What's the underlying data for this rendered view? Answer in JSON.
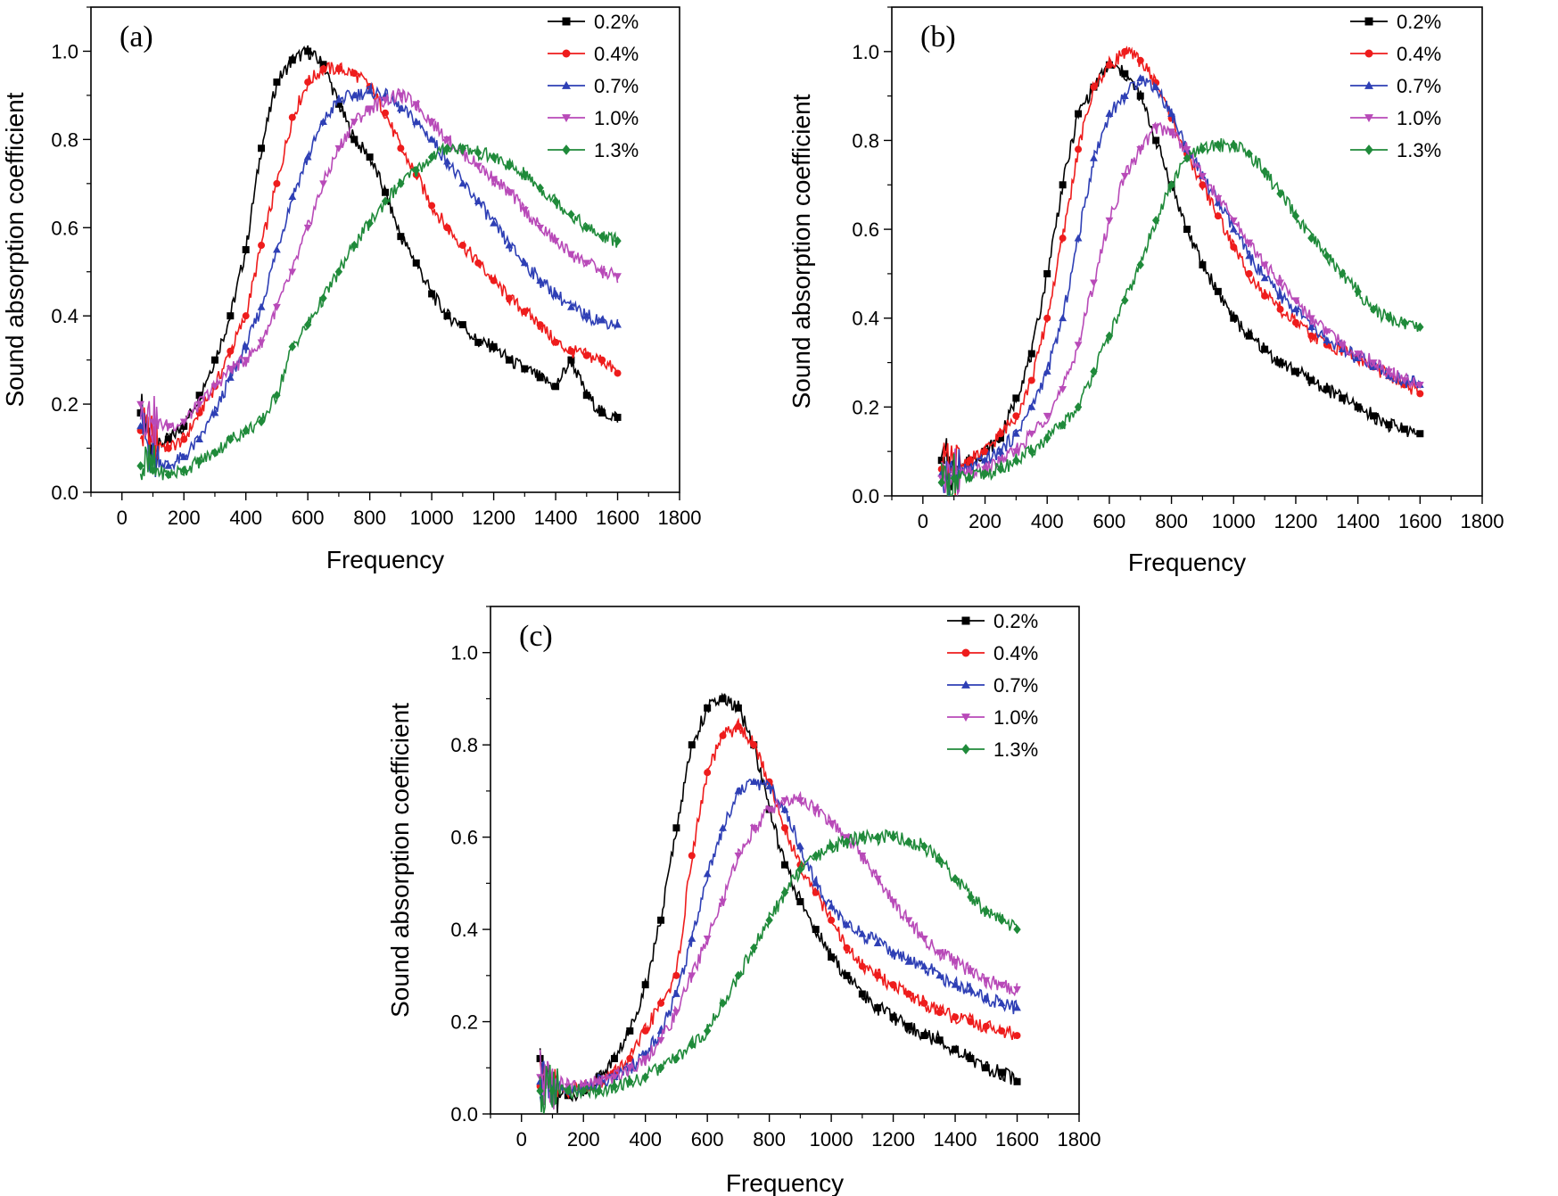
{
  "colors": {
    "0.2%": "#000000",
    "0.4%": "#ee1c1c",
    "0.7%": "#2e3fb5",
    "1.0%": "#b84ab8",
    "1.3%": "#1f8a3a"
  },
  "chart_data": [
    {
      "type": "line",
      "panel_label": "(a)",
      "xlabel": "Frequency",
      "ylabel": "Sound absorption coefficient",
      "xlim": [
        -100,
        1800
      ],
      "ylim": [
        0.0,
        1.1
      ],
      "xticks": [
        0,
        200,
        400,
        600,
        800,
        1000,
        1200,
        1400,
        1600,
        1800
      ],
      "yticks": [
        0.0,
        0.2,
        0.4,
        0.6,
        0.8,
        1.0
      ],
      "x": [
        60,
        100,
        150,
        200,
        250,
        300,
        350,
        400,
        450,
        500,
        550,
        600,
        650,
        700,
        750,
        800,
        850,
        900,
        950,
        1000,
        1050,
        1100,
        1150,
        1200,
        1250,
        1300,
        1350,
        1400,
        1450,
        1500,
        1550,
        1600
      ],
      "series": [
        {
          "name": "0.2%",
          "marker": "square",
          "values": [
            0.18,
            0.1,
            0.12,
            0.15,
            0.22,
            0.3,
            0.4,
            0.55,
            0.78,
            0.93,
            0.98,
            1.0,
            0.97,
            0.88,
            0.8,
            0.76,
            0.68,
            0.58,
            0.52,
            0.45,
            0.4,
            0.38,
            0.34,
            0.33,
            0.3,
            0.28,
            0.26,
            0.24,
            0.3,
            0.22,
            0.18,
            0.17
          ]
        },
        {
          "name": "0.4%",
          "marker": "circle",
          "values": [
            0.14,
            0.12,
            0.1,
            0.12,
            0.18,
            0.24,
            0.32,
            0.4,
            0.56,
            0.7,
            0.85,
            0.93,
            0.96,
            0.96,
            0.95,
            0.92,
            0.86,
            0.78,
            0.72,
            0.65,
            0.6,
            0.56,
            0.52,
            0.48,
            0.44,
            0.41,
            0.38,
            0.34,
            0.32,
            0.31,
            0.3,
            0.27
          ]
        },
        {
          "name": "0.7%",
          "marker": "triangle-up",
          "values": [
            0.15,
            0.08,
            0.06,
            0.08,
            0.12,
            0.18,
            0.26,
            0.33,
            0.42,
            0.55,
            0.67,
            0.76,
            0.84,
            0.89,
            0.9,
            0.91,
            0.9,
            0.87,
            0.84,
            0.8,
            0.75,
            0.7,
            0.66,
            0.61,
            0.56,
            0.52,
            0.48,
            0.45,
            0.42,
            0.4,
            0.39,
            0.38
          ]
        },
        {
          "name": "1.0%",
          "marker": "triangle-down",
          "values": [
            0.2,
            0.16,
            0.15,
            0.16,
            0.2,
            0.24,
            0.28,
            0.3,
            0.34,
            0.42,
            0.5,
            0.6,
            0.7,
            0.78,
            0.84,
            0.87,
            0.89,
            0.9,
            0.88,
            0.84,
            0.8,
            0.77,
            0.74,
            0.71,
            0.68,
            0.64,
            0.6,
            0.57,
            0.54,
            0.52,
            0.5,
            0.49
          ]
        },
        {
          "name": "1.3%",
          "marker": "diamond",
          "values": [
            0.06,
            0.05,
            0.04,
            0.05,
            0.07,
            0.09,
            0.12,
            0.14,
            0.16,
            0.22,
            0.33,
            0.38,
            0.44,
            0.5,
            0.56,
            0.61,
            0.66,
            0.7,
            0.73,
            0.76,
            0.78,
            0.78,
            0.77,
            0.76,
            0.74,
            0.72,
            0.69,
            0.66,
            0.63,
            0.6,
            0.58,
            0.57
          ]
        }
      ]
    },
    {
      "type": "line",
      "panel_label": "(b)",
      "xlabel": "Frequency",
      "ylabel": "Sound absorption coefficient",
      "xlim": [
        -100,
        1800
      ],
      "ylim": [
        0.0,
        1.1
      ],
      "xticks": [
        0,
        200,
        400,
        600,
        800,
        1000,
        1200,
        1400,
        1600,
        1800
      ],
      "yticks": [
        0.0,
        0.2,
        0.4,
        0.6,
        0.8,
        1.0
      ],
      "x": [
        60,
        100,
        150,
        200,
        250,
        300,
        350,
        400,
        450,
        500,
        550,
        600,
        650,
        700,
        750,
        800,
        850,
        900,
        950,
        1000,
        1050,
        1100,
        1150,
        1200,
        1250,
        1300,
        1350,
        1400,
        1450,
        1500,
        1550,
        1600
      ],
      "series": [
        {
          "name": "0.2%",
          "marker": "square",
          "values": [
            0.08,
            0.06,
            0.08,
            0.1,
            0.13,
            0.22,
            0.32,
            0.5,
            0.7,
            0.86,
            0.92,
            0.97,
            0.95,
            0.9,
            0.8,
            0.7,
            0.6,
            0.52,
            0.46,
            0.4,
            0.36,
            0.33,
            0.3,
            0.28,
            0.26,
            0.24,
            0.22,
            0.2,
            0.18,
            0.16,
            0.15,
            0.14
          ]
        },
        {
          "name": "0.4%",
          "marker": "circle",
          "values": [
            0.06,
            0.06,
            0.08,
            0.1,
            0.14,
            0.18,
            0.26,
            0.4,
            0.58,
            0.78,
            0.92,
            0.97,
            1.0,
            0.98,
            0.93,
            0.85,
            0.77,
            0.7,
            0.63,
            0.56,
            0.5,
            0.45,
            0.42,
            0.39,
            0.36,
            0.34,
            0.33,
            0.31,
            0.29,
            0.27,
            0.25,
            0.23
          ]
        },
        {
          "name": "0.7%",
          "marker": "triangle-up",
          "values": [
            0.05,
            0.05,
            0.06,
            0.08,
            0.1,
            0.14,
            0.2,
            0.28,
            0.4,
            0.58,
            0.76,
            0.86,
            0.9,
            0.94,
            0.92,
            0.86,
            0.78,
            0.72,
            0.66,
            0.6,
            0.54,
            0.49,
            0.45,
            0.42,
            0.38,
            0.35,
            0.33,
            0.31,
            0.29,
            0.27,
            0.26,
            0.25
          ]
        },
        {
          "name": "1.0%",
          "marker": "triangle-down",
          "values": [
            0.04,
            0.05,
            0.05,
            0.06,
            0.08,
            0.1,
            0.14,
            0.18,
            0.24,
            0.34,
            0.48,
            0.62,
            0.72,
            0.78,
            0.83,
            0.82,
            0.78,
            0.72,
            0.67,
            0.62,
            0.57,
            0.52,
            0.48,
            0.44,
            0.4,
            0.37,
            0.34,
            0.32,
            0.3,
            0.28,
            0.26,
            0.25
          ]
        },
        {
          "name": "1.3%",
          "marker": "diamond",
          "values": [
            0.03,
            0.04,
            0.04,
            0.05,
            0.06,
            0.08,
            0.1,
            0.13,
            0.16,
            0.2,
            0.28,
            0.36,
            0.44,
            0.52,
            0.62,
            0.7,
            0.76,
            0.78,
            0.79,
            0.79,
            0.77,
            0.73,
            0.68,
            0.63,
            0.58,
            0.54,
            0.5,
            0.46,
            0.42,
            0.4,
            0.39,
            0.38
          ]
        }
      ]
    },
    {
      "type": "line",
      "panel_label": "(c)",
      "xlabel": "Frequency",
      "ylabel": "Sound absorption coefficient",
      "xlim": [
        -100,
        1800
      ],
      "ylim": [
        0.0,
        1.1
      ],
      "xticks": [
        0,
        200,
        400,
        600,
        800,
        1000,
        1200,
        1400,
        1600,
        1800
      ],
      "yticks": [
        0.0,
        0.2,
        0.4,
        0.6,
        0.8,
        1.0
      ],
      "x": [
        60,
        100,
        150,
        200,
        250,
        300,
        350,
        400,
        450,
        500,
        550,
        600,
        650,
        700,
        750,
        800,
        850,
        900,
        950,
        1000,
        1050,
        1100,
        1150,
        1200,
        1250,
        1300,
        1350,
        1400,
        1450,
        1500,
        1550,
        1600
      ],
      "series": [
        {
          "name": "0.2%",
          "marker": "square",
          "values": [
            0.12,
            0.06,
            0.04,
            0.05,
            0.08,
            0.12,
            0.18,
            0.28,
            0.42,
            0.62,
            0.8,
            0.88,
            0.9,
            0.88,
            0.8,
            0.66,
            0.54,
            0.46,
            0.4,
            0.34,
            0.3,
            0.26,
            0.23,
            0.21,
            0.19,
            0.17,
            0.16,
            0.14,
            0.12,
            0.1,
            0.09,
            0.07
          ]
        },
        {
          "name": "0.4%",
          "marker": "circle",
          "values": [
            0.06,
            0.05,
            0.05,
            0.06,
            0.07,
            0.09,
            0.12,
            0.18,
            0.24,
            0.3,
            0.56,
            0.74,
            0.82,
            0.84,
            0.8,
            0.72,
            0.62,
            0.54,
            0.48,
            0.42,
            0.36,
            0.32,
            0.3,
            0.28,
            0.26,
            0.24,
            0.22,
            0.21,
            0.2,
            0.19,
            0.18,
            0.17
          ]
        },
        {
          "name": "0.7%",
          "marker": "triangle-up",
          "values": [
            0.07,
            0.06,
            0.05,
            0.06,
            0.07,
            0.08,
            0.1,
            0.13,
            0.18,
            0.26,
            0.38,
            0.52,
            0.62,
            0.7,
            0.72,
            0.71,
            0.66,
            0.58,
            0.5,
            0.45,
            0.41,
            0.39,
            0.37,
            0.35,
            0.33,
            0.32,
            0.3,
            0.28,
            0.27,
            0.25,
            0.24,
            0.23
          ]
        },
        {
          "name": "1.0%",
          "marker": "triangle-down",
          "values": [
            0.08,
            0.07,
            0.06,
            0.06,
            0.07,
            0.08,
            0.1,
            0.12,
            0.16,
            0.22,
            0.3,
            0.38,
            0.46,
            0.56,
            0.62,
            0.66,
            0.68,
            0.68,
            0.66,
            0.63,
            0.6,
            0.56,
            0.51,
            0.46,
            0.42,
            0.38,
            0.35,
            0.33,
            0.31,
            0.29,
            0.28,
            0.27
          ]
        },
        {
          "name": "1.3%",
          "marker": "diamond",
          "values": [
            0.05,
            0.05,
            0.05,
            0.05,
            0.05,
            0.06,
            0.07,
            0.08,
            0.1,
            0.12,
            0.15,
            0.18,
            0.24,
            0.3,
            0.36,
            0.42,
            0.48,
            0.53,
            0.56,
            0.58,
            0.59,
            0.6,
            0.6,
            0.6,
            0.59,
            0.58,
            0.55,
            0.51,
            0.47,
            0.44,
            0.42,
            0.4
          ]
        }
      ]
    }
  ]
}
